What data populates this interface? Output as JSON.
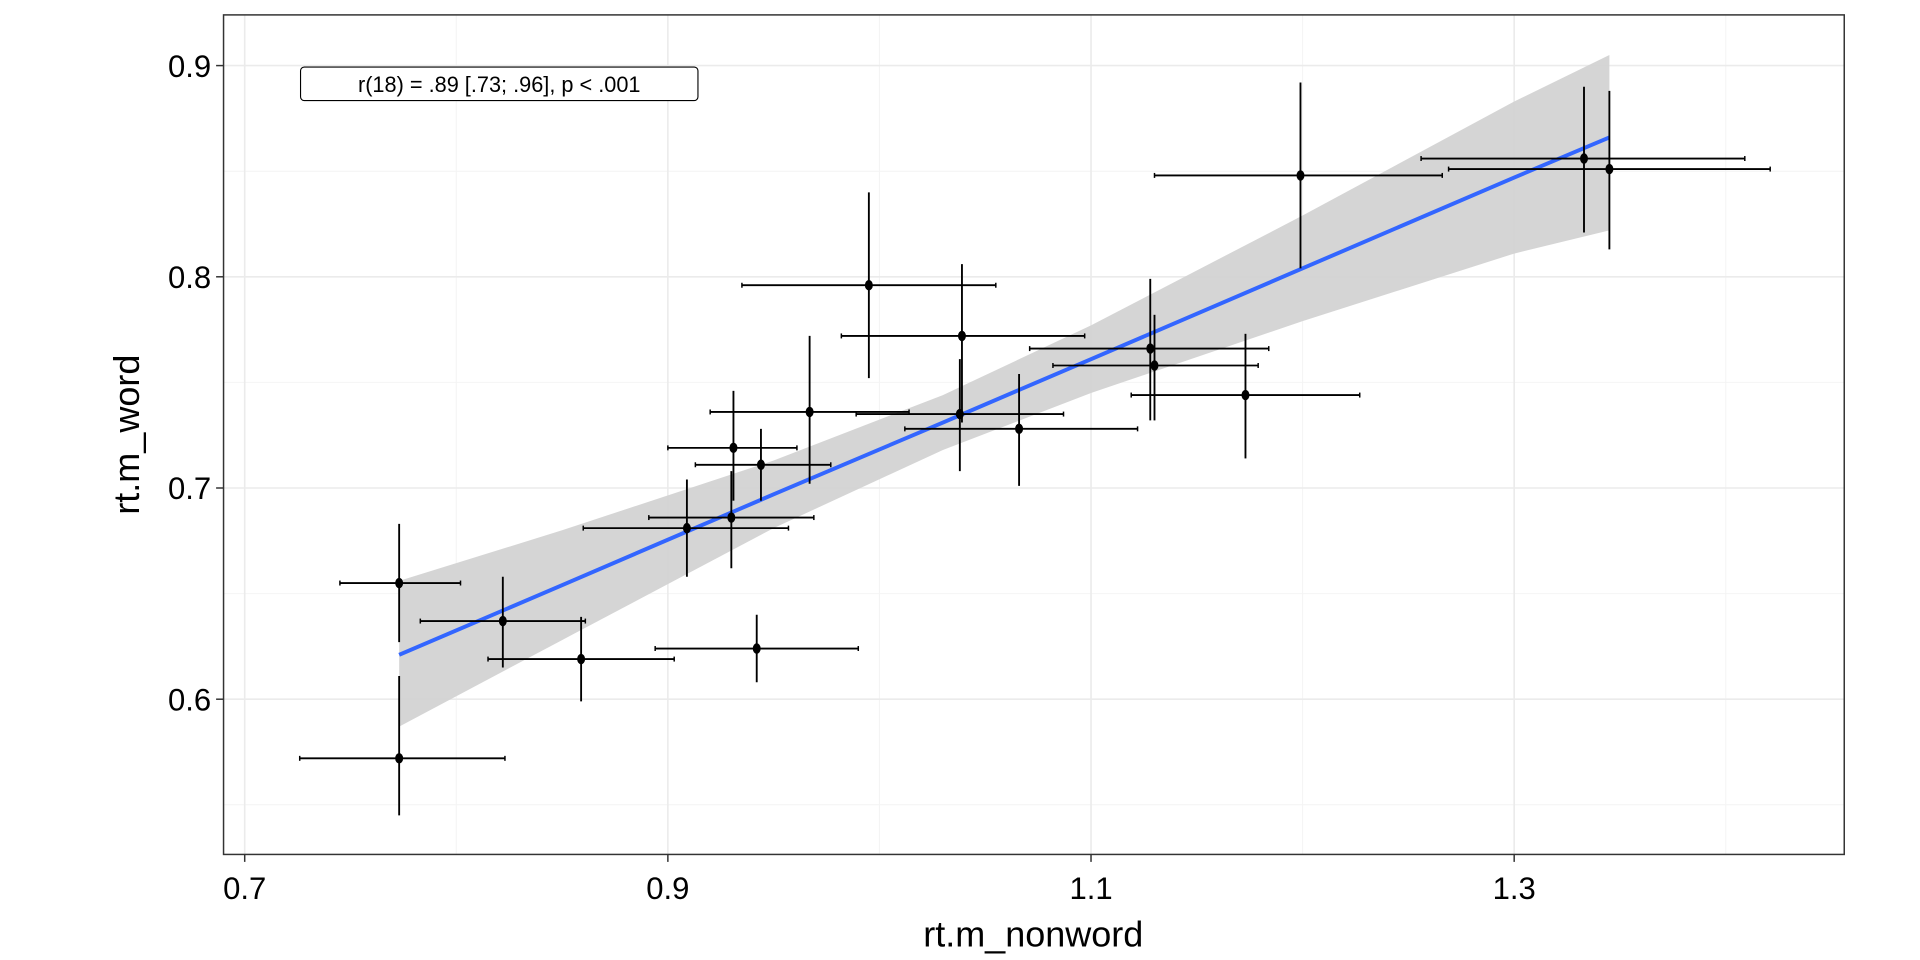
{
  "chart_data": {
    "type": "scatter",
    "title": "",
    "xlabel": "rt.m_nonword",
    "ylabel": "rt.m_word",
    "xlim": [
      0.69,
      1.456
    ],
    "ylim": [
      0.5265,
      0.924
    ],
    "x_ticks": [
      0.7,
      0.9,
      1.1,
      1.3
    ],
    "x_tick_labels": [
      "0.7",
      "0.9",
      "1.1",
      "1.3"
    ],
    "y_ticks": [
      0.6,
      0.7,
      0.8,
      0.9
    ],
    "y_tick_labels": [
      "0.6",
      "0.7",
      "0.8",
      "0.9"
    ],
    "x_minor": [
      0.8,
      1.0,
      1.2,
      1.4
    ],
    "y_minor": [
      0.55,
      0.65,
      0.75,
      0.85
    ],
    "grid": true,
    "annotation": "r(18) = .89 [.73; .96], p < .001",
    "points": [
      {
        "x": 0.773,
        "y": 0.572,
        "xmin": 0.726,
        "xmax": 0.823,
        "ymin": 0.545,
        "ymax": 0.611
      },
      {
        "x": 0.773,
        "y": 0.655,
        "xmin": 0.745,
        "xmax": 0.802,
        "ymin": 0.627,
        "ymax": 0.683
      },
      {
        "x": 0.822,
        "y": 0.637,
        "xmin": 0.783,
        "xmax": 0.861,
        "ymin": 0.615,
        "ymax": 0.658
      },
      {
        "x": 0.859,
        "y": 0.619,
        "xmin": 0.815,
        "xmax": 0.903,
        "ymin": 0.599,
        "ymax": 0.639
      },
      {
        "x": 0.942,
        "y": 0.624,
        "xmin": 0.894,
        "xmax": 0.99,
        "ymin": 0.608,
        "ymax": 0.64
      },
      {
        "x": 0.909,
        "y": 0.681,
        "xmin": 0.86,
        "xmax": 0.957,
        "ymin": 0.658,
        "ymax": 0.704
      },
      {
        "x": 0.93,
        "y": 0.686,
        "xmin": 0.891,
        "xmax": 0.969,
        "ymin": 0.662,
        "ymax": 0.708
      },
      {
        "x": 0.931,
        "y": 0.719,
        "xmin": 0.9,
        "xmax": 0.961,
        "ymin": 0.694,
        "ymax": 0.746
      },
      {
        "x": 0.944,
        "y": 0.711,
        "xmin": 0.913,
        "xmax": 0.977,
        "ymin": 0.694,
        "ymax": 0.728
      },
      {
        "x": 0.967,
        "y": 0.736,
        "xmin": 0.92,
        "xmax": 1.014,
        "ymin": 0.702,
        "ymax": 0.772
      },
      {
        "x": 0.995,
        "y": 0.796,
        "xmin": 0.935,
        "xmax": 1.055,
        "ymin": 0.752,
        "ymax": 0.84
      },
      {
        "x": 1.039,
        "y": 0.772,
        "xmin": 0.982,
        "xmax": 1.097,
        "ymin": 0.731,
        "ymax": 0.806
      },
      {
        "x": 1.038,
        "y": 0.735,
        "xmin": 0.989,
        "xmax": 1.087,
        "ymin": 0.708,
        "ymax": 0.761
      },
      {
        "x": 1.066,
        "y": 0.728,
        "xmin": 1.012,
        "xmax": 1.122,
        "ymin": 0.701,
        "ymax": 0.754
      },
      {
        "x": 1.128,
        "y": 0.766,
        "xmin": 1.071,
        "xmax": 1.184,
        "ymin": 0.732,
        "ymax": 0.799
      },
      {
        "x": 1.13,
        "y": 0.758,
        "xmin": 1.082,
        "xmax": 1.179,
        "ymin": 0.732,
        "ymax": 0.782
      },
      {
        "x": 1.173,
        "y": 0.744,
        "xmin": 1.119,
        "xmax": 1.227,
        "ymin": 0.714,
        "ymax": 0.773
      },
      {
        "x": 1.199,
        "y": 0.848,
        "xmin": 1.13,
        "xmax": 1.266,
        "ymin": 0.804,
        "ymax": 0.892
      },
      {
        "x": 1.333,
        "y": 0.856,
        "xmin": 1.256,
        "xmax": 1.409,
        "ymin": 0.821,
        "ymax": 0.89
      },
      {
        "x": 1.345,
        "y": 0.851,
        "xmin": 1.269,
        "xmax": 1.421,
        "ymin": 0.813,
        "ymax": 0.888
      }
    ],
    "fit": {
      "x": [
        0.773,
        0.85,
        0.95,
        1.03,
        1.1,
        1.2,
        1.3,
        1.345
      ],
      "y": [
        0.621,
        0.654,
        0.697,
        0.731,
        0.761,
        0.804,
        0.847,
        0.866
      ],
      "lower": [
        0.587,
        0.628,
        0.681,
        0.718,
        0.745,
        0.779,
        0.811,
        0.822
      ],
      "upper": [
        0.656,
        0.68,
        0.713,
        0.744,
        0.777,
        0.829,
        0.883,
        0.905
      ]
    },
    "colors": {
      "line": "#3366FF",
      "ribbon": "#D3D3D3",
      "points": "#000000",
      "grid_major": "#EBEBEB",
      "grid_minor": "#F4F4F4",
      "border": "#333333"
    }
  }
}
